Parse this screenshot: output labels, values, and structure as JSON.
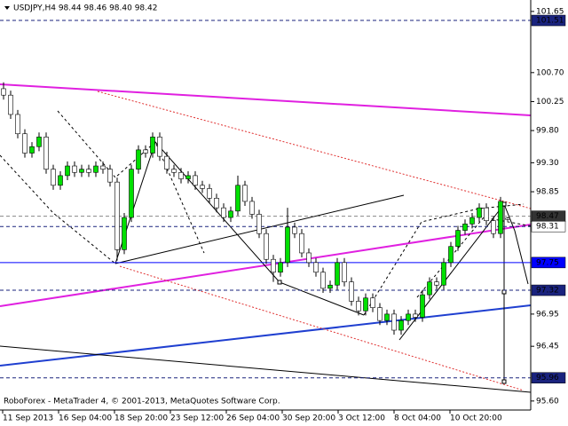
{
  "chart_data": {
    "type": "candlestick",
    "header": "USDJPY,H4  98.44 98.46 98.40 98.42",
    "watermark": "RoboForex - MetaTrader 4, © 2001-2013, MetaQuotes Software Corp.",
    "ylim": [
      95.46,
      101.8
    ],
    "yticks": [
      101.65,
      {
        "value": 100.7,
        "label": "100.70"
      },
      100.25,
      {
        "value": 99.8,
        "label": "99.80"
      },
      {
        "value": 99.3,
        "label": "99.30"
      },
      98.85,
      96.95,
      96.45,
      {
        "value": 95.6,
        "label": "95.60"
      }
    ],
    "x_labels": [
      "11 Sep 2013",
      "16 Sep 04:00",
      "18 Sep 20:00",
      "23 Sep 12:00",
      "26 Sep 04:00",
      "30 Sep 20:00",
      "3 Oct 12:00",
      "8 Oct 04:00",
      "10 Oct 20:00"
    ],
    "up_color": "#00e000",
    "down_color": "#ffffff",
    "levels": [
      {
        "value": 101.51,
        "color": "#1a237e",
        "label_bg": "#1a237e",
        "label_color": "#ffffff"
      },
      {
        "value": 98.47,
        "color": "#888888",
        "label_bg": "#333333",
        "label_color": "#ffffff"
      },
      {
        "value": 98.31,
        "color": "#1a237e",
        "label_bg": "#ffffff",
        "label_color": "#000000"
      },
      {
        "value": 97.75,
        "color": "#0000ff",
        "label_bg": "#0000ff",
        "label_color": "#ffffff"
      },
      {
        "value": 97.32,
        "color": "#1a237e",
        "label_bg": "#1a237e",
        "label_color": "#ffffff"
      },
      {
        "value": 95.96,
        "color": "#1a237e",
        "label_bg": "#1a237e",
        "label_color": "#ffffff"
      }
    ],
    "candles": [
      [
        100.45,
        100.55,
        100.28,
        100.35
      ],
      [
        100.35,
        100.42,
        99.98,
        100.05
      ],
      [
        100.05,
        100.12,
        99.68,
        99.75
      ],
      [
        99.75,
        99.82,
        99.38,
        99.45
      ],
      [
        99.45,
        99.62,
        99.38,
        99.55
      ],
      [
        99.55,
        99.77,
        99.48,
        99.7
      ],
      [
        99.7,
        99.77,
        99.13,
        99.2
      ],
      [
        99.2,
        99.27,
        98.88,
        98.95
      ],
      [
        98.95,
        99.17,
        98.88,
        99.1
      ],
      [
        99.1,
        99.32,
        99.03,
        99.25
      ],
      [
        99.25,
        99.32,
        99.08,
        99.15
      ],
      [
        99.15,
        99.27,
        99.08,
        99.2
      ],
      [
        99.2,
        99.27,
        99.08,
        99.15
      ],
      [
        99.15,
        99.32,
        99.08,
        99.25
      ],
      [
        99.25,
        99.32,
        99.13,
        99.2
      ],
      [
        99.2,
        99.27,
        98.93,
        99
      ],
      [
        99,
        99.07,
        97.78,
        97.95
      ],
      [
        97.95,
        98.52,
        97.88,
        98.45
      ],
      [
        98.45,
        99.27,
        98.38,
        99.2
      ],
      [
        99.2,
        99.57,
        99.13,
        99.5
      ],
      [
        99.5,
        99.57,
        99.38,
        99.45
      ],
      [
        99.45,
        99.77,
        99.38,
        99.7
      ],
      [
        99.7,
        99.77,
        99.33,
        99.4
      ],
      [
        99.4,
        99.47,
        99.13,
        99.2
      ],
      [
        99.2,
        99.27,
        99.08,
        99.15
      ],
      [
        99.15,
        99.22,
        98.98,
        99.05
      ],
      [
        99.05,
        99.17,
        98.98,
        99.1
      ],
      [
        99.1,
        99.17,
        98.88,
        98.95
      ],
      [
        98.95,
        99.02,
        98.83,
        98.9
      ],
      [
        98.9,
        98.97,
        98.68,
        98.75
      ],
      [
        98.75,
        98.82,
        98.53,
        98.6
      ],
      [
        98.6,
        98.67,
        98.38,
        98.45
      ],
      [
        98.45,
        98.62,
        98.38,
        98.55
      ],
      [
        98.55,
        99.1,
        98.48,
        98.95
      ],
      [
        98.95,
        99.02,
        98.63,
        98.7
      ],
      [
        98.7,
        98.77,
        98.43,
        98.5
      ],
      [
        98.5,
        98.57,
        98.13,
        98.2
      ],
      [
        98.2,
        98.27,
        97.73,
        97.8
      ],
      [
        97.8,
        97.87,
        97.45,
        97.6
      ],
      [
        97.6,
        97.82,
        97.53,
        97.75
      ],
      [
        97.75,
        98.6,
        97.68,
        98.3
      ],
      [
        98.3,
        98.37,
        98.13,
        98.2
      ],
      [
        98.2,
        98.27,
        97.83,
        97.9
      ],
      [
        97.9,
        97.97,
        97.68,
        97.75
      ],
      [
        97.75,
        97.82,
        97.53,
        97.6
      ],
      [
        97.6,
        97.67,
        97.28,
        97.35
      ],
      [
        97.35,
        97.47,
        97.28,
        97.4
      ],
      [
        97.4,
        97.82,
        97.33,
        97.75
      ],
      [
        97.75,
        97.82,
        97.38,
        97.45
      ],
      [
        97.45,
        97.52,
        97.08,
        97.15
      ],
      [
        97.15,
        97.22,
        96.93,
        97
      ],
      [
        97,
        97.27,
        96.93,
        97.2
      ],
      [
        97.2,
        97.27,
        96.98,
        97.05
      ],
      [
        97.05,
        97.12,
        96.78,
        96.85
      ],
      [
        96.85,
        97.02,
        96.78,
        96.95
      ],
      [
        96.95,
        97.02,
        96.63,
        96.7
      ],
      [
        96.7,
        96.92,
        96.63,
        96.85
      ],
      [
        96.85,
        97.02,
        96.78,
        96.95
      ],
      [
        96.95,
        97.02,
        96.83,
        96.9
      ],
      [
        96.9,
        97.32,
        96.83,
        97.25
      ],
      [
        97.25,
        97.52,
        97.18,
        97.45
      ],
      [
        97.45,
        97.52,
        97.33,
        97.4
      ],
      [
        97.4,
        97.82,
        97.33,
        97.75
      ],
      [
        97.75,
        98.07,
        97.68,
        98
      ],
      [
        98,
        98.32,
        97.93,
        98.25
      ],
      [
        98.25,
        98.42,
        98.18,
        98.35
      ],
      [
        98.35,
        98.52,
        98.28,
        98.45
      ],
      [
        98.45,
        98.67,
        98.38,
        98.6
      ],
      [
        98.6,
        98.67,
        98.33,
        98.4
      ],
      [
        98.4,
        98.47,
        98.13,
        98.2
      ],
      [
        98.2,
        98.77,
        98.13,
        98.7
      ],
      [
        98.44,
        98.46,
        98.4,
        98.42
      ]
    ]
  }
}
